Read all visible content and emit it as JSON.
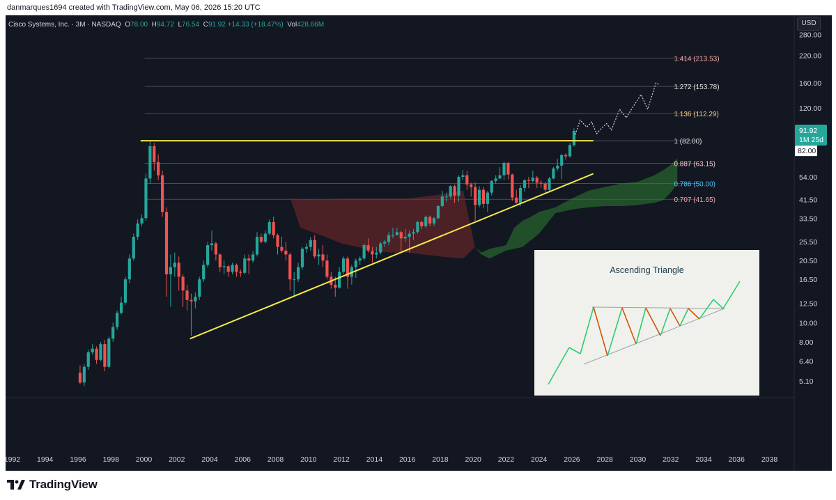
{
  "header": {
    "author_line": "danmarques1694 created with TradingView.com, May 06, 2026 15:20 UTC"
  },
  "info_bar": {
    "symbol": "Cisco Systems, Inc. · 3M · NASDAQ",
    "open_label": "O",
    "open": "78.00",
    "high_label": "H",
    "high": "94.72",
    "low_label": "L",
    "low": "76.54",
    "close_label": "C",
    "close": "91.92",
    "change": "+14.33 (+18.47%)",
    "vol_label": "Vol",
    "vol": "428.66M"
  },
  "currency": "USD",
  "footer": {
    "brand": "TradingView"
  },
  "colors": {
    "up": "#26a69a",
    "down": "#ef5350",
    "trendline": "#f5e94b",
    "cloud_green": "#2e7d32",
    "cloud_red": "#7a2a2a",
    "background": "#131722"
  },
  "chart_data": {
    "type": "candlestick",
    "scale": "log",
    "price_ticks": [
      "280.00",
      "220.00",
      "160.00",
      "120.00",
      "82.00",
      "54.00",
      "41.50",
      "33.50",
      "25.50",
      "20.50",
      "16.50",
      "12.50",
      "10.00",
      "8.00",
      "6.40",
      "5.10"
    ],
    "year_ticks": [
      "1992",
      "1994",
      "1996",
      "1998",
      "2000",
      "2002",
      "2004",
      "2006",
      "2008",
      "2010",
      "2012",
      "2014",
      "2016",
      "2018",
      "2020",
      "2022",
      "2024",
      "2026",
      "2028",
      "2030",
      "2032",
      "2034",
      "2036",
      "2038"
    ],
    "x_range": [
      1991.6,
      2039.5
    ],
    "y_range": [
      4.2,
      350
    ],
    "last_price": {
      "value": "91.92",
      "countdown": "1M 25d"
    },
    "fib_levels": [
      {
        "ratio": "1.414",
        "price": 213.53,
        "label": "1.414 (213.53)",
        "color": "#f8a6a6"
      },
      {
        "ratio": "1.272",
        "price": 153.78,
        "label": "1.272 (153.78)",
        "color": "#e6e6e6"
      },
      {
        "ratio": "1.136",
        "price": 112.29,
        "label": "1.136 (112.29)",
        "color": "#f5d08a"
      },
      {
        "ratio": "1",
        "price": 82.0,
        "label": "1 (82.00)",
        "color": "#e6e6e6"
      },
      {
        "ratio": "0.887",
        "price": 63.15,
        "label": "0.887 (63.15)",
        "color": "#f3c6cf"
      },
      {
        "ratio": "0.786",
        "price": 50.0,
        "label": "0.786 (50.00)",
        "color": "#4fc3f7"
      },
      {
        "ratio": "0.707",
        "price": 41.65,
        "label": "0.707 (41.65)",
        "color": "#f4a3b5"
      }
    ],
    "resistance_line": {
      "x1": 1999.8,
      "x2": 2027.3,
      "price": 82.0
    },
    "support_line": {
      "x1": 2002.8,
      "y1": 8.3,
      "x2": 2027.3,
      "y2": 56.0
    },
    "projection": [
      [
        2026.2,
        88
      ],
      [
        2026.5,
        104
      ],
      [
        2026.9,
        96
      ],
      [
        2027.2,
        102
      ],
      [
        2027.5,
        89
      ],
      [
        2027.8,
        95
      ],
      [
        2028.1,
        100
      ],
      [
        2028.4,
        93
      ],
      [
        2028.9,
        118
      ],
      [
        2029.3,
        107
      ],
      [
        2029.7,
        121
      ],
      [
        2030.2,
        140
      ],
      [
        2030.6,
        118
      ],
      [
        2031.1,
        160
      ],
      [
        2031.3,
        157
      ]
    ],
    "candles": [
      [
        1996.0,
        5.6,
        5.0,
        6.1,
        4.9
      ],
      [
        1996.25,
        5.0,
        6.0,
        6.2,
        4.8
      ],
      [
        1996.5,
        6.0,
        7.1,
        7.3,
        5.8
      ],
      [
        1996.75,
        7.1,
        7.4,
        7.8,
        6.9
      ],
      [
        1997.0,
        7.4,
        6.5,
        7.6,
        6.2
      ],
      [
        1997.25,
        6.5,
        7.8,
        8.0,
        6.4
      ],
      [
        1997.5,
        7.8,
        6.0,
        8.2,
        5.7
      ],
      [
        1997.75,
        6.0,
        8.3,
        8.5,
        5.9
      ],
      [
        1998.0,
        8.3,
        9.5,
        10.0,
        8.0
      ],
      [
        1998.25,
        9.5,
        11.2,
        11.5,
        9.2
      ],
      [
        1998.5,
        11.2,
        12.6,
        13.5,
        11.0
      ],
      [
        1998.75,
        12.6,
        16.5,
        17.0,
        12.3
      ],
      [
        1999.0,
        16.5,
        21.0,
        22.0,
        15.8
      ],
      [
        1999.25,
        21.0,
        27.0,
        28.0,
        20.5
      ],
      [
        1999.5,
        27.0,
        31.5,
        33.0,
        26.0
      ],
      [
        1999.75,
        31.5,
        33.5,
        35.0,
        30.5
      ],
      [
        2000.0,
        33.5,
        53.0,
        56.0,
        32.5
      ],
      [
        2000.25,
        53.0,
        77.0,
        82.0,
        50.0
      ],
      [
        2000.5,
        77.0,
        64.0,
        80.0,
        58.0
      ],
      [
        2000.75,
        64.0,
        55.0,
        70.0,
        52.0
      ],
      [
        2001.0,
        55.0,
        36.0,
        58.0,
        34.0
      ],
      [
        2001.25,
        36.0,
        17.5,
        38.0,
        13.5
      ],
      [
        2001.5,
        17.5,
        19.0,
        22.0,
        12.0
      ],
      [
        2001.75,
        19.0,
        20.0,
        22.5,
        17.0
      ],
      [
        2002.0,
        20.0,
        17.0,
        21.5,
        14.5
      ],
      [
        2002.25,
        17.0,
        14.5,
        17.5,
        12.0
      ],
      [
        2002.5,
        14.5,
        13.0,
        15.5,
        11.5
      ],
      [
        2002.75,
        13.0,
        12.8,
        14.0,
        8.6
      ],
      [
        2003.0,
        12.8,
        13.5,
        14.2,
        11.8
      ],
      [
        2003.25,
        13.5,
        16.5,
        17.0,
        13.0
      ],
      [
        2003.5,
        16.5,
        19.5,
        20.5,
        16.0
      ],
      [
        2003.75,
        19.5,
        24.5,
        25.5,
        19.0
      ],
      [
        2004.0,
        24.5,
        25.0,
        29.0,
        23.0
      ],
      [
        2004.25,
        25.0,
        22.0,
        25.5,
        20.5
      ],
      [
        2004.5,
        22.0,
        19.0,
        22.3,
        18.0
      ],
      [
        2004.75,
        19.0,
        19.2,
        20.5,
        17.5
      ],
      [
        2005.0,
        19.2,
        18.0,
        19.5,
        17.0
      ],
      [
        2005.25,
        18.0,
        19.5,
        20.0,
        17.5
      ],
      [
        2005.5,
        19.5,
        18.0,
        19.8,
        17.0
      ],
      [
        2005.75,
        18.0,
        17.8,
        18.5,
        17.0
      ],
      [
        2006.0,
        17.8,
        21.0,
        22.0,
        17.5
      ],
      [
        2006.25,
        21.0,
        20.5,
        22.0,
        17.5
      ],
      [
        2006.5,
        20.5,
        22.0,
        23.0,
        20.0
      ],
      [
        2006.75,
        22.0,
        27.0,
        28.5,
        21.5
      ],
      [
        2007.0,
        27.0,
        25.5,
        28.0,
        25.0
      ],
      [
        2007.25,
        25.5,
        28.0,
        29.0,
        25.0
      ],
      [
        2007.5,
        28.0,
        32.0,
        33.0,
        27.5
      ],
      [
        2007.75,
        32.0,
        27.5,
        34.0,
        26.5
      ],
      [
        2008.0,
        27.5,
        24.0,
        28.0,
        22.0
      ],
      [
        2008.25,
        24.0,
        23.0,
        27.0,
        22.5
      ],
      [
        2008.5,
        23.0,
        22.0,
        25.5,
        20.5
      ],
      [
        2008.75,
        22.0,
        16.5,
        22.5,
        14.5
      ],
      [
        2009.0,
        16.5,
        16.5,
        18.0,
        13.5
      ],
      [
        2009.25,
        16.5,
        19.0,
        20.0,
        16.0
      ],
      [
        2009.5,
        19.0,
        23.5,
        24.0,
        18.5
      ],
      [
        2009.75,
        23.5,
        24.0,
        25.0,
        22.5
      ],
      [
        2010.0,
        24.0,
        26.0,
        27.0,
        23.0
      ],
      [
        2010.25,
        26.0,
        21.5,
        27.5,
        21.0
      ],
      [
        2010.5,
        21.5,
        22.0,
        23.5,
        19.5
      ],
      [
        2010.75,
        22.0,
        20.5,
        24.5,
        19.0
      ],
      [
        2011.0,
        20.5,
        17.0,
        22.0,
        16.5
      ],
      [
        2011.25,
        17.0,
        15.5,
        18.0,
        14.8
      ],
      [
        2011.5,
        15.5,
        15.0,
        17.0,
        13.5
      ],
      [
        2011.75,
        15.0,
        18.0,
        19.0,
        14.8
      ],
      [
        2012.0,
        18.0,
        21.0,
        21.5,
        17.5
      ],
      [
        2012.25,
        21.0,
        17.0,
        21.5,
        14.8
      ],
      [
        2012.5,
        17.0,
        19.0,
        19.5,
        15.5
      ],
      [
        2012.75,
        19.0,
        20.5,
        21.0,
        16.8
      ],
      [
        2013.0,
        20.5,
        21.0,
        21.5,
        19.5
      ],
      [
        2013.25,
        21.0,
        24.5,
        25.0,
        20.5
      ],
      [
        2013.5,
        24.5,
        23.0,
        26.5,
        22.5
      ],
      [
        2013.75,
        23.0,
        22.0,
        24.0,
        20.0
      ],
      [
        2014.0,
        22.0,
        22.5,
        24.0,
        21.0
      ],
      [
        2014.25,
        22.5,
        25.0,
        25.5,
        22.0
      ],
      [
        2014.5,
        25.0,
        25.5,
        26.0,
        24.0
      ],
      [
        2014.75,
        25.5,
        27.5,
        28.5,
        24.5
      ],
      [
        2015.0,
        27.5,
        27.5,
        30.0,
        26.5
      ],
      [
        2015.25,
        27.5,
        28.5,
        30.0,
        27.5
      ],
      [
        2015.5,
        28.5,
        26.5,
        29.0,
        23.0
      ],
      [
        2015.75,
        26.5,
        27.0,
        29.5,
        25.5
      ],
      [
        2016.0,
        27.0,
        28.0,
        29.0,
        22.5
      ],
      [
        2016.25,
        28.0,
        28.5,
        29.5,
        26.0
      ],
      [
        2016.5,
        28.5,
        32.0,
        32.5,
        28.0
      ],
      [
        2016.75,
        32.0,
        30.5,
        32.5,
        29.5
      ],
      [
        2017.0,
        30.5,
        34.0,
        34.5,
        30.0
      ],
      [
        2017.25,
        34.0,
        31.5,
        34.5,
        30.5
      ],
      [
        2017.5,
        31.5,
        33.5,
        34.0,
        30.5
      ],
      [
        2017.75,
        33.5,
        38.5,
        39.0,
        33.0
      ],
      [
        2018.0,
        38.5,
        43.0,
        46.0,
        38.0
      ],
      [
        2018.25,
        43.0,
        43.0,
        45.0,
        40.5
      ],
      [
        2018.5,
        43.0,
        48.5,
        49.0,
        42.0
      ],
      [
        2018.75,
        48.5,
        43.5,
        49.5,
        40.0
      ],
      [
        2019.0,
        43.5,
        54.0,
        55.0,
        40.5
      ],
      [
        2019.25,
        54.0,
        55.0,
        58.5,
        52.0
      ],
      [
        2019.5,
        55.0,
        49.5,
        58.0,
        46.5
      ],
      [
        2019.75,
        49.5,
        48.0,
        50.5,
        43.0
      ],
      [
        2020.0,
        48.0,
        39.0,
        50.5,
        32.5
      ],
      [
        2020.25,
        39.0,
        46.5,
        48.5,
        38.0
      ],
      [
        2020.5,
        46.5,
        39.5,
        48.0,
        37.5
      ],
      [
        2020.75,
        39.5,
        45.0,
        46.0,
        36.0
      ],
      [
        2021.0,
        45.0,
        51.5,
        52.0,
        43.5
      ],
      [
        2021.25,
        51.5,
        53.0,
        55.0,
        50.0
      ],
      [
        2021.5,
        53.0,
        55.0,
        60.5,
        52.5
      ],
      [
        2021.75,
        55.0,
        63.5,
        64.5,
        52.0
      ],
      [
        2022.0,
        63.5,
        55.5,
        64.0,
        52.5
      ],
      [
        2022.25,
        55.5,
        42.5,
        56.0,
        41.0
      ],
      [
        2022.5,
        42.5,
        40.0,
        46.5,
        39.5
      ],
      [
        2022.75,
        40.0,
        47.5,
        49.0,
        38.5
      ],
      [
        2023.0,
        47.5,
        52.0,
        52.5,
        45.5
      ],
      [
        2023.25,
        52.0,
        51.5,
        54.0,
        47.5
      ],
      [
        2023.5,
        51.5,
        53.5,
        58.0,
        50.5
      ],
      [
        2023.75,
        53.5,
        50.5,
        54.5,
        47.5
      ],
      [
        2024.0,
        50.5,
        50.0,
        52.0,
        47.5
      ],
      [
        2024.25,
        50.0,
        46.5,
        51.0,
        44.5
      ],
      [
        2024.5,
        46.5,
        53.0,
        54.0,
        45.5
      ],
      [
        2024.75,
        53.0,
        59.5,
        60.5,
        52.5
      ],
      [
        2025.0,
        59.5,
        61.5,
        66.5,
        58.0
      ],
      [
        2025.25,
        61.5,
        69.5,
        70.5,
        52.5
      ],
      [
        2025.5,
        69.5,
        68.5,
        71.0,
        66.0
      ],
      [
        2025.75,
        68.5,
        78.0,
        80.0,
        67.5
      ],
      [
        2026.0,
        78.0,
        91.92,
        94.72,
        76.54
      ]
    ],
    "ichimoku_cloud": {
      "red_upper": [
        [
          2008.9,
          42
        ],
        [
          2010,
          41.5
        ],
        [
          2012,
          42
        ],
        [
          2014,
          42
        ],
        [
          2016,
          42
        ],
        [
          2017,
          43
        ],
        [
          2018,
          44
        ],
        [
          2019.4,
          46
        ],
        [
          2020.1,
          24
        ]
      ],
      "red_lower": [
        [
          2009.5,
          30
        ],
        [
          2010,
          29
        ],
        [
          2011,
          27
        ],
        [
          2012,
          25
        ],
        [
          2013,
          24
        ],
        [
          2014,
          23
        ],
        [
          2015,
          22.5
        ],
        [
          2016,
          22.5
        ],
        [
          2017,
          22
        ],
        [
          2018,
          21.5
        ],
        [
          2019.4,
          21
        ],
        [
          2020.1,
          24
        ]
      ],
      "green_upper": [
        [
          2020.1,
          24
        ],
        [
          2020.5,
          22.5
        ],
        [
          2021,
          23.5
        ],
        [
          2022,
          24.5
        ],
        [
          2022.5,
          30
        ],
        [
          2023,
          32.5
        ],
        [
          2023.5,
          34
        ],
        [
          2024,
          36
        ],
        [
          2025,
          38
        ],
        [
          2026,
          42
        ],
        [
          2027,
          46
        ],
        [
          2028,
          48
        ],
        [
          2029,
          50
        ],
        [
          2030,
          51
        ],
        [
          2030.5,
          53
        ],
        [
          2031,
          55
        ],
        [
          2031.5,
          58
        ],
        [
          2032,
          62
        ],
        [
          2032.4,
          67
        ]
      ],
      "green_lower": [
        [
          2020.1,
          24
        ],
        [
          2020.5,
          22
        ],
        [
          2021,
          21
        ],
        [
          2022,
          23
        ],
        [
          2023,
          24
        ],
        [
          2024,
          28
        ],
        [
          2025,
          35.5
        ],
        [
          2026,
          37
        ],
        [
          2027,
          38
        ],
        [
          2028,
          38.5
        ],
        [
          2029,
          38.5
        ],
        [
          2030,
          39
        ],
        [
          2031,
          40
        ],
        [
          2031.5,
          41
        ],
        [
          2032,
          45
        ],
        [
          2032.4,
          50
        ]
      ]
    },
    "inset": {
      "title": "Ascending Triangle",
      "pattern": [
        [
          0.0,
          8
        ],
        [
          0.25,
          52
        ],
        [
          0.4,
          44
        ],
        [
          0.62,
          95
        ],
        [
          0.82,
          18
        ],
        [
          1.0,
          93
        ]
      ]
    }
  }
}
